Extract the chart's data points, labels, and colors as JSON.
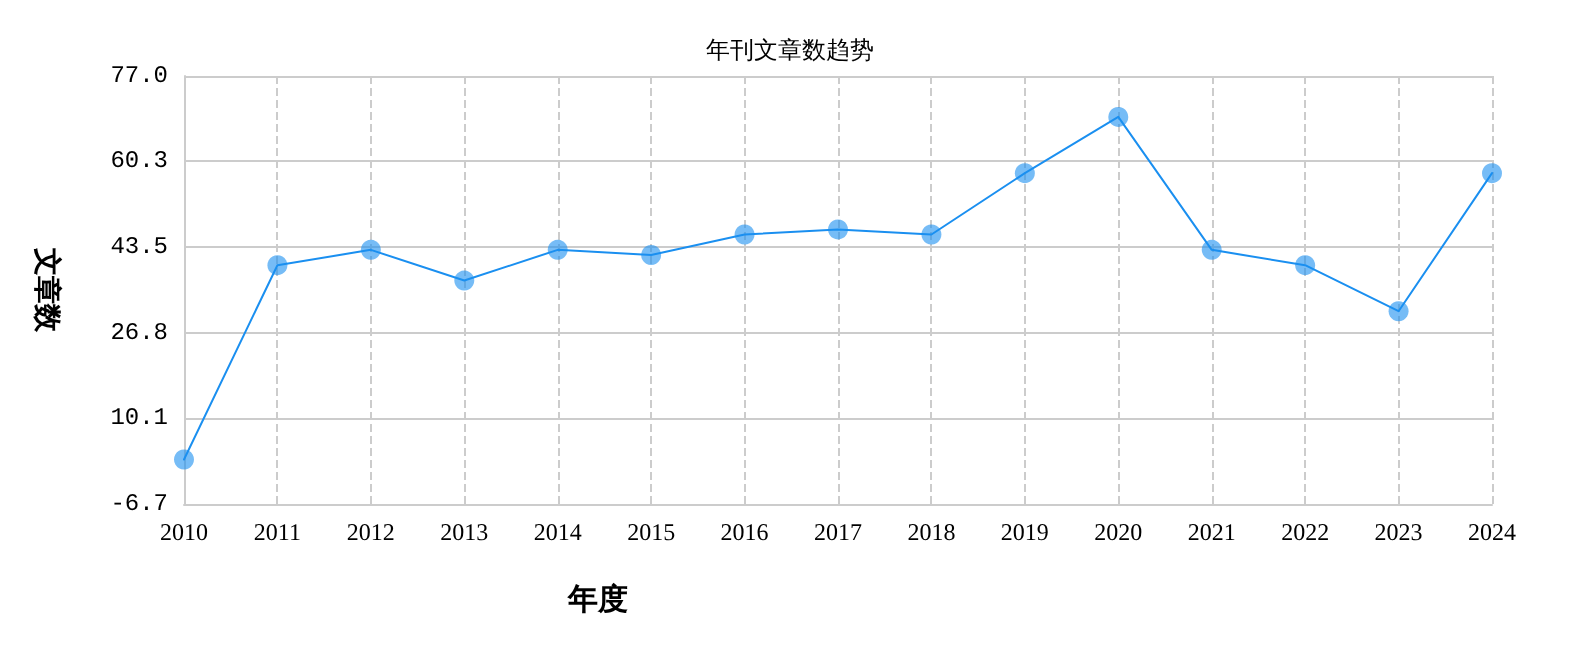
{
  "chart_data": {
    "type": "line",
    "title": "年刊文章数趋势",
    "xlabel": "年度",
    "ylabel": "文章数",
    "categories": [
      "2010",
      "2011",
      "2012",
      "2013",
      "2014",
      "2015",
      "2016",
      "2017",
      "2018",
      "2019",
      "2020",
      "2021",
      "2022",
      "2023",
      "2024"
    ],
    "series": [
      {
        "color": "#1a8ff0",
        "values": [
          2,
          40,
          43,
          37,
          43,
          42,
          46,
          47,
          46,
          58,
          69,
          43,
          40,
          31,
          58
        ]
      }
    ],
    "ylim": [
      -6.7,
      77.0
    ],
    "yticks": [
      -6.7,
      10.1,
      26.8,
      43.5,
      60.3,
      {
        "value": 77.0,
        "label": "77.0"
      }
    ],
    "grid": true,
    "marker": "circle",
    "line_style": "solid"
  }
}
